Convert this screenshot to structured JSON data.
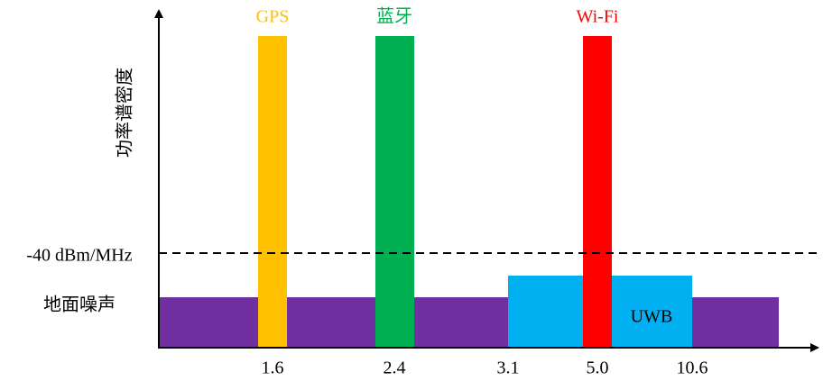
{
  "axes": {
    "y_label": "功率谱密度",
    "x_ticks": [
      "1.6",
      "2.4",
      "3.1",
      "5.0",
      "10.6"
    ]
  },
  "levels": {
    "limit": "-40 dBm/MHz",
    "noise": "地面噪声"
  },
  "bands": {
    "gps": "GPS",
    "bluetooth": "蓝牙",
    "wifi": "Wi-Fi",
    "uwb": "UWB"
  }
}
